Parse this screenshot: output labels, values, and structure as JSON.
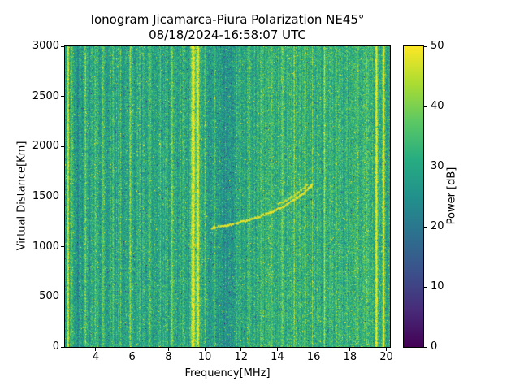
{
  "chart_data": {
    "type": "heatmap",
    "title": "Ionogram Jicamarca-Piura Polarization NE45°",
    "subtitle": "08/18/2024-16:58:07 UTC",
    "xlabel": "Frequency[MHz]",
    "ylabel": "Virtual Distance[Km]",
    "xlim": [
      2.3,
      20.2
    ],
    "ylim": [
      0,
      3000
    ],
    "x_ticks": [
      4,
      6,
      8,
      10,
      12,
      14,
      16,
      18,
      20
    ],
    "y_ticks": [
      0,
      500,
      1000,
      1500,
      2000,
      2500,
      3000
    ],
    "grid": false,
    "colorbar": {
      "label": "Power [dB]",
      "min": 0,
      "max": 50,
      "ticks": [
        0,
        10,
        20,
        30,
        40,
        50
      ],
      "colormap": "viridis",
      "stops": [
        "#440154",
        "#472c7a",
        "#3b518b",
        "#2c718e",
        "#21918c",
        "#27ad81",
        "#5cc863",
        "#aadc32",
        "#fde725"
      ]
    },
    "background_noise_db": {
      "mean": 29.5,
      "sigma": 5.5
    },
    "rfi_stripes": [
      {
        "freq": 2.45,
        "amp_db": 21,
        "width_mhz": 0.05
      },
      {
        "freq": 2.62,
        "amp_db": 12,
        "width_mhz": 0.04
      },
      {
        "freq": 3.42,
        "amp_db": 8,
        "width_mhz": 0.05
      },
      {
        "freq": 3.95,
        "amp_db": 6,
        "width_mhz": 0.04
      },
      {
        "freq": 4.38,
        "amp_db": 7,
        "width_mhz": 0.05
      },
      {
        "freq": 4.95,
        "amp_db": 6,
        "width_mhz": 0.04
      },
      {
        "freq": 5.35,
        "amp_db": 6,
        "width_mhz": 0.04
      },
      {
        "freq": 5.88,
        "amp_db": 9,
        "width_mhz": 0.05
      },
      {
        "freq": 6.42,
        "amp_db": 6,
        "width_mhz": 0.04
      },
      {
        "freq": 6.98,
        "amp_db": 9,
        "width_mhz": 0.05
      },
      {
        "freq": 7.55,
        "amp_db": 6,
        "width_mhz": 0.04
      },
      {
        "freq": 8.18,
        "amp_db": 8,
        "width_mhz": 0.05
      },
      {
        "freq": 8.8,
        "amp_db": 7,
        "width_mhz": 0.04
      },
      {
        "freq": 9.35,
        "amp_db": 19,
        "width_mhz": 0.1
      },
      {
        "freq": 9.62,
        "amp_db": 19,
        "width_mhz": 0.09
      },
      {
        "freq": 10.02,
        "amp_db": 8,
        "width_mhz": 0.04
      },
      {
        "freq": 10.55,
        "amp_db": 5,
        "width_mhz": 0.04
      },
      {
        "freq": 11.15,
        "amp_db": 6,
        "width_mhz": 0.04
      },
      {
        "freq": 11.78,
        "amp_db": 5,
        "width_mhz": 0.04
      },
      {
        "freq": 12.42,
        "amp_db": 7,
        "width_mhz": 0.05
      },
      {
        "freq": 13.08,
        "amp_db": 6,
        "width_mhz": 0.04
      },
      {
        "freq": 13.72,
        "amp_db": 5,
        "width_mhz": 0.04
      },
      {
        "freq": 14.25,
        "amp_db": 7,
        "width_mhz": 0.05
      },
      {
        "freq": 14.95,
        "amp_db": 6,
        "width_mhz": 0.04
      },
      {
        "freq": 15.55,
        "amp_db": 5,
        "width_mhz": 0.04
      },
      {
        "freq": 15.95,
        "amp_db": 7,
        "width_mhz": 0.04
      },
      {
        "freq": 16.62,
        "amp_db": 9,
        "width_mhz": 0.05
      },
      {
        "freq": 17.28,
        "amp_db": 7,
        "width_mhz": 0.04
      },
      {
        "freq": 17.85,
        "amp_db": 6,
        "width_mhz": 0.04
      },
      {
        "freq": 18.42,
        "amp_db": 8,
        "width_mhz": 0.05
      },
      {
        "freq": 18.95,
        "amp_db": 7,
        "width_mhz": 0.04
      },
      {
        "freq": 19.48,
        "amp_db": 18,
        "width_mhz": 0.06
      },
      {
        "freq": 19.88,
        "amp_db": 16,
        "width_mhz": 0.06
      },
      {
        "freq": 14.8,
        "amp_db": 2.5,
        "width_mhz": 1.8
      },
      {
        "freq": 18.5,
        "amp_db": 2.5,
        "width_mhz": 1.5
      }
    ],
    "dark_bands": [
      {
        "freq": 3.0,
        "amp_db": -4,
        "width_mhz": 0.25
      },
      {
        "freq": 11.2,
        "amp_db": -4.5,
        "width_mhz": 0.6
      }
    ],
    "echo_trace": {
      "power_db": 49,
      "points": [
        [
          10.35,
          1195
        ],
        [
          10.6,
          1200
        ],
        [
          10.9,
          1210
        ],
        [
          11.2,
          1220
        ],
        [
          11.5,
          1230
        ],
        [
          11.8,
          1245
        ],
        [
          12.1,
          1260
        ],
        [
          12.4,
          1275
        ],
        [
          12.7,
          1290
        ],
        [
          13.0,
          1310
        ],
        [
          13.3,
          1330
        ],
        [
          13.6,
          1350
        ],
        [
          13.9,
          1375
        ],
        [
          14.2,
          1400
        ],
        [
          14.5,
          1430
        ],
        [
          14.8,
          1465
        ],
        [
          15.1,
          1500
        ],
        [
          15.35,
          1535
        ],
        [
          15.6,
          1575
        ],
        [
          15.8,
          1610
        ],
        [
          15.9,
          1640
        ]
      ]
    },
    "echo_trace_2": {
      "power_db": 47,
      "points": [
        [
          14.0,
          1430
        ],
        [
          14.3,
          1455
        ],
        [
          14.6,
          1485
        ],
        [
          14.9,
          1520
        ],
        [
          15.2,
          1560
        ],
        [
          15.45,
          1600
        ],
        [
          15.6,
          1630
        ]
      ]
    }
  }
}
